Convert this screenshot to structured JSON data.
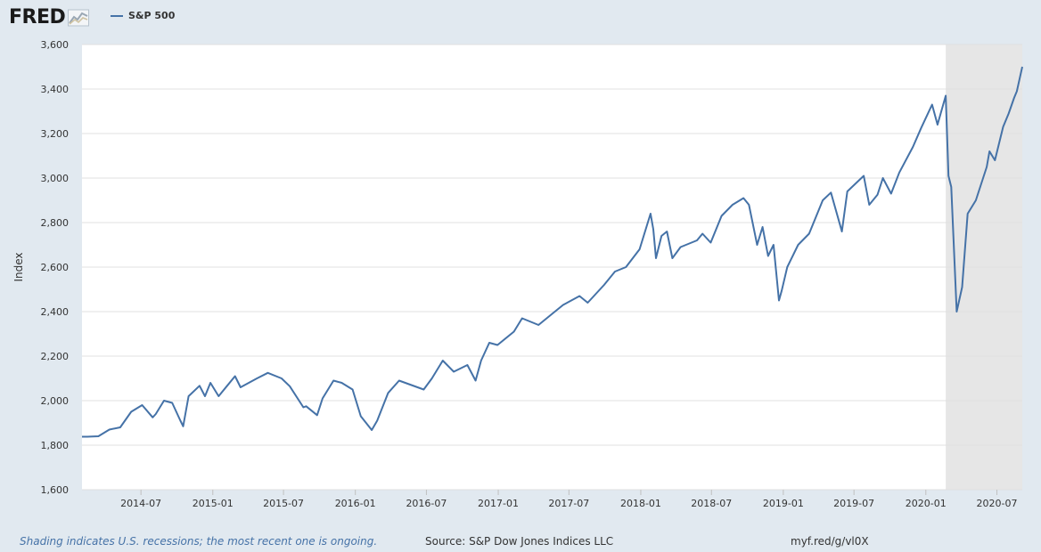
{
  "header": {
    "logo_text": "FRED",
    "logo_graph_icon": "line-graph-icon",
    "legend_label": "S&P 500"
  },
  "colors": {
    "background": "#e1e9f0",
    "plot_background": "#ffffff",
    "series": "#4572a7",
    "recession_shading": "#e6e6e6",
    "gridline": "#e6e6e6"
  },
  "footer": {
    "note": "Shading indicates U.S. recessions; the most recent one is ongoing.",
    "source": "Source: S&P Dow Jones Indices LLC",
    "url": "myf.red/g/vl0X"
  },
  "chart_data": {
    "type": "line",
    "ylabel": "Index",
    "xlabel": "",
    "ylim": [
      1600,
      3600
    ],
    "yticks": [
      1600,
      1800,
      2000,
      2200,
      2400,
      2600,
      2800,
      3000,
      3200,
      3400,
      3600
    ],
    "ytick_labels": [
      "1,600",
      "1,800",
      "2,000",
      "2,200",
      "2,400",
      "2,600",
      "2,800",
      "3,000",
      "3,200",
      "3,400",
      "3,600"
    ],
    "xlim": [
      "2014-01-31",
      "2020-09-04"
    ],
    "xticks": [
      "2014-07-01",
      "2015-01-01",
      "2015-07-01",
      "2016-01-01",
      "2016-07-01",
      "2017-01-01",
      "2017-07-01",
      "2018-01-01",
      "2018-07-01",
      "2019-01-01",
      "2019-07-01",
      "2020-01-01",
      "2020-07-01"
    ],
    "xtick_labels": [
      "2014-07",
      "2015-01",
      "2015-07",
      "2016-01",
      "2016-07",
      "2017-01",
      "2017-07",
      "2018-01",
      "2018-07",
      "2019-01",
      "2019-07",
      "2020-01",
      "2020-07"
    ],
    "grid": true,
    "recession": {
      "start": "2020-02-21",
      "end": "2020-09-04"
    },
    "series": [
      {
        "name": "S&P 500",
        "x": [
          "2014-01-31",
          "2014-02-14",
          "2014-03-14",
          "2014-04-11",
          "2014-05-09",
          "2014-06-06",
          "2014-07-04",
          "2014-07-31",
          "2014-08-08",
          "2014-08-29",
          "2014-09-19",
          "2014-10-10",
          "2014-10-17",
          "2014-10-31",
          "2014-11-28",
          "2014-12-12",
          "2014-12-26",
          "2015-01-16",
          "2015-02-27",
          "2015-03-13",
          "2015-04-24",
          "2015-05-22",
          "2015-06-26",
          "2015-07-17",
          "2015-08-21",
          "2015-08-28",
          "2015-09-25",
          "2015-10-09",
          "2015-11-06",
          "2015-11-27",
          "2015-12-25",
          "2016-01-15",
          "2016-02-12",
          "2016-02-26",
          "2016-03-25",
          "2016-04-22",
          "2016-06-24",
          "2016-07-15",
          "2016-08-12",
          "2016-09-09",
          "2016-10-14",
          "2016-11-04",
          "2016-11-18",
          "2016-12-09",
          "2016-12-30",
          "2017-02-10",
          "2017-03-03",
          "2017-04-14",
          "2017-05-19",
          "2017-06-16",
          "2017-07-28",
          "2017-08-18",
          "2017-09-29",
          "2017-10-27",
          "2017-11-24",
          "2017-12-29",
          "2018-01-26",
          "2018-02-02",
          "2018-02-09",
          "2018-02-23",
          "2018-03-09",
          "2018-03-23",
          "2018-04-13",
          "2018-05-25",
          "2018-06-08",
          "2018-06-29",
          "2018-07-27",
          "2018-08-24",
          "2018-09-21",
          "2018-10-05",
          "2018-10-26",
          "2018-11-09",
          "2018-11-23",
          "2018-12-07",
          "2018-12-21",
          "2018-12-28",
          "2019-01-11",
          "2019-02-08",
          "2019-03-08",
          "2019-04-12",
          "2019-05-03",
          "2019-05-31",
          "2019-06-14",
          "2019-07-26",
          "2019-08-09",
          "2019-08-30",
          "2019-09-13",
          "2019-10-04",
          "2019-10-25",
          "2019-11-29",
          "2019-12-20",
          "2020-01-17",
          "2020-01-31",
          "2020-02-21",
          "2020-02-28",
          "2020-03-06",
          "2020-03-20",
          "2020-04-03",
          "2020-04-17",
          "2020-05-08",
          "2020-06-05",
          "2020-06-12",
          "2020-06-26",
          "2020-07-17",
          "2020-07-31",
          "2020-08-14",
          "2020-08-21",
          "2020-09-04"
        ],
        "values": [
          1838,
          1838,
          1840,
          1870,
          1880,
          1950,
          1980,
          1925,
          1940,
          2000,
          1990,
          1910,
          1885,
          2020,
          2067,
          2020,
          2080,
          2020,
          2110,
          2060,
          2100,
          2125,
          2100,
          2065,
          1970,
          1975,
          1935,
          2010,
          2090,
          2080,
          2050,
          1930,
          1868,
          1910,
          2035,
          2090,
          2050,
          2100,
          2180,
          2130,
          2160,
          2090,
          2180,
          2260,
          2250,
          2310,
          2370,
          2340,
          2390,
          2430,
          2470,
          2440,
          2520,
          2580,
          2600,
          2680,
          2840,
          2770,
          2640,
          2740,
          2760,
          2640,
          2690,
          2720,
          2750,
          2710,
          2830,
          2880,
          2910,
          2880,
          2700,
          2780,
          2650,
          2700,
          2450,
          2495,
          2600,
          2700,
          2750,
          2900,
          2935,
          2760,
          2940,
          3010,
          2880,
          2925,
          3000,
          2930,
          3025,
          3140,
          3225,
          3330,
          3240,
          3370,
          3010,
          2960,
          2400,
          2510,
          2840,
          2900,
          3050,
          3120,
          3080,
          3230,
          3290,
          3360,
          3390,
          3500
        ]
      }
    ]
  }
}
